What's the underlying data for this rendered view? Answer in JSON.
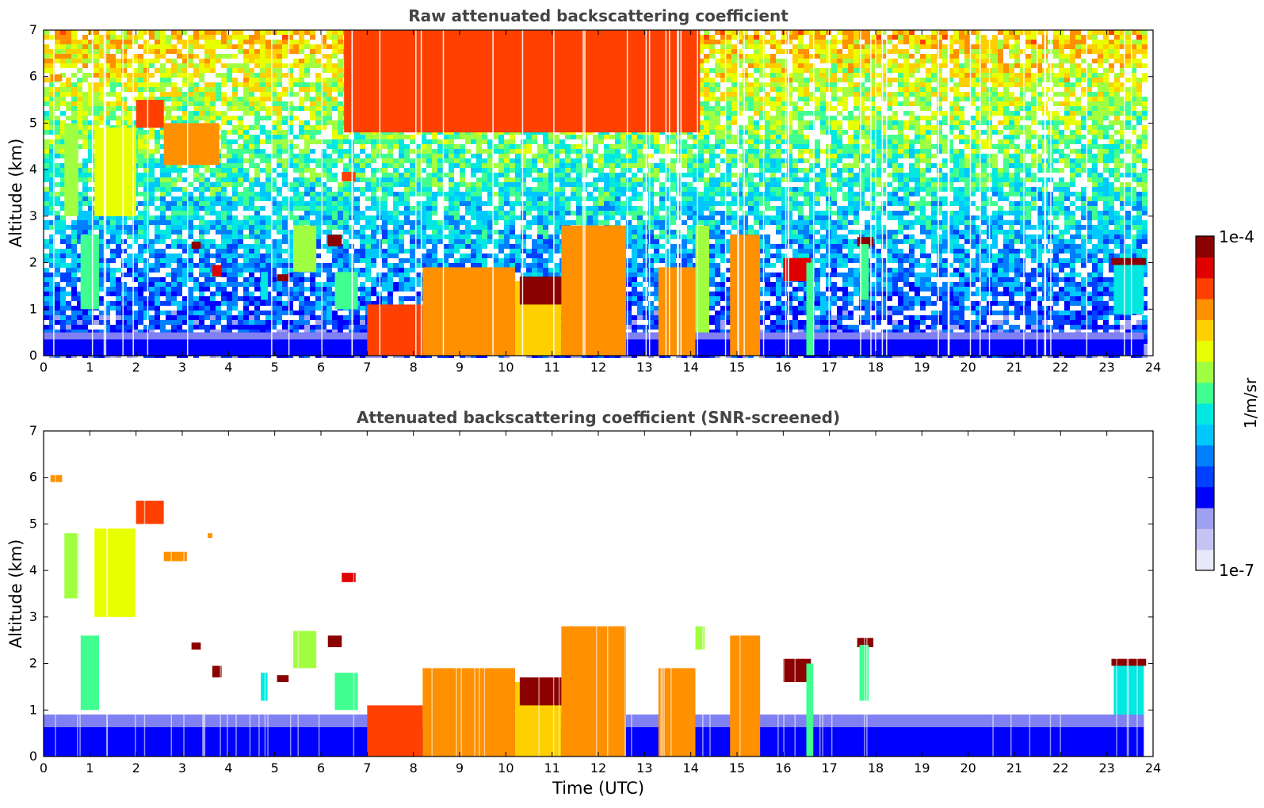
{
  "chart_data": [
    {
      "type": "heatmap",
      "title": "Raw attenuated backscattering coefficient",
      "xlabel": "",
      "ylabel": "Altitude (km)",
      "xlim": [
        0,
        24
      ],
      "ylim": [
        0,
        7
      ],
      "x_ticks": [
        "0",
        "1",
        "2",
        "3",
        "4",
        "5",
        "6",
        "7",
        "8",
        "9",
        "10",
        "11",
        "12",
        "13",
        "14",
        "15",
        "16",
        "17",
        "18",
        "19",
        "20",
        "21",
        "22",
        "23",
        "24"
      ],
      "y_ticks": [
        "0",
        "1",
        "2",
        "3",
        "4",
        "5",
        "6",
        "7"
      ],
      "grid": false,
      "scale": "log",
      "noise_level": 0.8,
      "ground_layer": {
        "top_km": 0.5,
        "end_time": 23.8
      },
      "features": [
        {
          "t0": 0.45,
          "t1": 0.75,
          "z0": 3.0,
          "z1": 5.0,
          "level": 0.62
        },
        {
          "t0": 1.1,
          "t1": 2.0,
          "z0": 3.0,
          "z1": 4.9,
          "level": 0.68
        },
        {
          "t0": 2.0,
          "t1": 2.6,
          "z0": 4.9,
          "z1": 5.5,
          "level": 0.82
        },
        {
          "t0": 0.15,
          "t1": 0.4,
          "z0": 5.9,
          "z1": 6.05,
          "level": 0.78
        },
        {
          "t0": 2.6,
          "t1": 3.8,
          "z0": 4.1,
          "z1": 5.0,
          "level": 0.76
        },
        {
          "t0": 0.8,
          "t1": 1.2,
          "z0": 1.0,
          "z1": 2.6,
          "level": 0.55
        },
        {
          "t0": 3.2,
          "t1": 3.4,
          "z0": 2.3,
          "z1": 2.45,
          "level": 0.95
        },
        {
          "t0": 3.65,
          "t1": 3.85,
          "z0": 1.7,
          "z1": 1.95,
          "level": 0.9
        },
        {
          "t0": 4.7,
          "t1": 4.85,
          "z0": 1.2,
          "z1": 1.8,
          "level": 0.48
        },
        {
          "t0": 5.05,
          "t1": 5.3,
          "z0": 1.6,
          "z1": 1.75,
          "level": 0.95
        },
        {
          "t0": 5.4,
          "t1": 5.9,
          "z0": 1.8,
          "z1": 2.8,
          "level": 0.58
        },
        {
          "t0": 6.15,
          "t1": 6.45,
          "z0": 2.35,
          "z1": 2.6,
          "level": 0.96
        },
        {
          "t0": 6.45,
          "t1": 6.75,
          "z0": 3.75,
          "z1": 3.95,
          "level": 0.86
        },
        {
          "t0": 6.3,
          "t1": 6.8,
          "z0": 1.0,
          "z1": 1.8,
          "level": 0.52
        },
        {
          "t0": 7.0,
          "t1": 8.2,
          "z0": 0.0,
          "z1": 1.1,
          "level": 0.82
        },
        {
          "t0": 8.2,
          "t1": 10.2,
          "z0": 0.0,
          "z1": 1.9,
          "level": 0.8
        },
        {
          "t0": 10.2,
          "t1": 11.2,
          "z0": 0.0,
          "z1": 1.6,
          "level": 0.7
        },
        {
          "t0": 10.3,
          "t1": 12.6,
          "z0": 1.1,
          "z1": 1.7,
          "level": 0.95
        },
        {
          "t0": 11.2,
          "t1": 12.6,
          "z0": 0.0,
          "z1": 2.8,
          "level": 0.78
        },
        {
          "t0": 13.3,
          "t1": 14.1,
          "z0": 0.0,
          "z1": 1.9,
          "level": 0.8
        },
        {
          "t0": 14.1,
          "t1": 14.4,
          "z0": 0.5,
          "z1": 2.8,
          "level": 0.6
        },
        {
          "t0": 14.85,
          "t1": 15.5,
          "z0": 0.0,
          "z1": 2.6,
          "level": 0.78
        },
        {
          "t0": 16.0,
          "t1": 16.6,
          "z0": 1.6,
          "z1": 2.1,
          "level": 0.9
        },
        {
          "t0": 16.5,
          "t1": 16.65,
          "z0": 0.0,
          "z1": 2.0,
          "level": 0.5
        },
        {
          "t0": 17.6,
          "t1": 17.95,
          "z0": 2.35,
          "z1": 2.55,
          "level": 0.97
        },
        {
          "t0": 17.65,
          "t1": 17.85,
          "z0": 1.2,
          "z1": 2.4,
          "level": 0.55
        },
        {
          "t0": 23.1,
          "t1": 23.85,
          "z0": 1.95,
          "z1": 2.1,
          "level": 0.97
        },
        {
          "t0": 23.15,
          "t1": 23.8,
          "z0": 0.9,
          "z1": 1.95,
          "level": 0.45
        },
        {
          "t0": 6.5,
          "t1": 14.2,
          "z0": 4.8,
          "z1": 7.0,
          "level": 0.82
        }
      ]
    },
    {
      "type": "heatmap",
      "title": "Attenuated backscattering coefficient (SNR-screened)",
      "xlabel": "Time (UTC)",
      "ylabel": "Altitude (km)",
      "xlim": [
        0,
        24
      ],
      "ylim": [
        0,
        7
      ],
      "x_ticks": [
        "0",
        "1",
        "2",
        "3",
        "4",
        "5",
        "6",
        "7",
        "8",
        "9",
        "10",
        "11",
        "12",
        "13",
        "14",
        "15",
        "16",
        "17",
        "18",
        "19",
        "20",
        "21",
        "22",
        "23",
        "24"
      ],
      "y_ticks": [
        "0",
        "1",
        "2",
        "3",
        "4",
        "5",
        "6",
        "7"
      ],
      "grid": false,
      "scale": "log",
      "noise_level": 0.0,
      "ground_layer": {
        "top_km": 0.9,
        "end_time": 23.8
      },
      "features": [
        {
          "t0": 0.45,
          "t1": 0.75,
          "z0": 3.4,
          "z1": 4.8,
          "level": 0.62
        },
        {
          "t0": 1.1,
          "t1": 2.0,
          "z0": 3.0,
          "z1": 4.9,
          "level": 0.68
        },
        {
          "t0": 2.0,
          "t1": 2.6,
          "z0": 5.0,
          "z1": 5.5,
          "level": 0.82
        },
        {
          "t0": 0.15,
          "t1": 0.4,
          "z0": 5.9,
          "z1": 6.05,
          "level": 0.78
        },
        {
          "t0": 2.6,
          "t1": 3.1,
          "z0": 4.2,
          "z1": 4.4,
          "level": 0.8
        },
        {
          "t0": 3.55,
          "t1": 3.65,
          "z0": 4.7,
          "z1": 4.8,
          "level": 0.78
        },
        {
          "t0": 0.8,
          "t1": 1.2,
          "z0": 1.0,
          "z1": 2.6,
          "level": 0.55
        },
        {
          "t0": 3.2,
          "t1": 3.4,
          "z0": 2.3,
          "z1": 2.45,
          "level": 0.98
        },
        {
          "t0": 3.65,
          "t1": 3.85,
          "z0": 1.7,
          "z1": 1.95,
          "level": 0.98
        },
        {
          "t0": 4.7,
          "t1": 4.85,
          "z0": 1.2,
          "z1": 1.8,
          "level": 0.48
        },
        {
          "t0": 5.05,
          "t1": 5.3,
          "z0": 1.6,
          "z1": 1.75,
          "level": 0.98
        },
        {
          "t0": 5.4,
          "t1": 5.9,
          "z0": 1.9,
          "z1": 2.7,
          "level": 0.58
        },
        {
          "t0": 6.15,
          "t1": 6.45,
          "z0": 2.35,
          "z1": 2.6,
          "level": 0.99
        },
        {
          "t0": 6.45,
          "t1": 6.75,
          "z0": 3.75,
          "z1": 3.95,
          "level": 0.88
        },
        {
          "t0": 6.3,
          "t1": 6.8,
          "z0": 1.0,
          "z1": 1.8,
          "level": 0.52
        },
        {
          "t0": 7.0,
          "t1": 8.2,
          "z0": 0.0,
          "z1": 1.1,
          "level": 0.82
        },
        {
          "t0": 8.2,
          "t1": 10.2,
          "z0": 0.0,
          "z1": 1.9,
          "level": 0.8
        },
        {
          "t0": 10.2,
          "t1": 11.2,
          "z0": 0.0,
          "z1": 1.6,
          "level": 0.7
        },
        {
          "t0": 10.3,
          "t1": 12.6,
          "z0": 1.1,
          "z1": 1.7,
          "level": 0.99
        },
        {
          "t0": 11.2,
          "t1": 12.6,
          "z0": 0.0,
          "z1": 2.8,
          "level": 0.78
        },
        {
          "t0": 13.3,
          "t1": 14.1,
          "z0": 0.0,
          "z1": 1.9,
          "level": 0.8
        },
        {
          "t0": 14.1,
          "t1": 14.3,
          "z0": 2.3,
          "z1": 2.8,
          "level": 0.6
        },
        {
          "t0": 14.85,
          "t1": 15.5,
          "z0": 0.0,
          "z1": 2.6,
          "level": 0.78
        },
        {
          "t0": 16.0,
          "t1": 16.6,
          "z0": 1.6,
          "z1": 2.1,
          "level": 0.95
        },
        {
          "t0": 16.5,
          "t1": 16.65,
          "z0": 0.0,
          "z1": 2.0,
          "level": 0.5
        },
        {
          "t0": 17.6,
          "t1": 17.95,
          "z0": 2.35,
          "z1": 2.55,
          "level": 0.99
        },
        {
          "t0": 17.65,
          "t1": 17.85,
          "z0": 1.2,
          "z1": 2.4,
          "level": 0.55
        },
        {
          "t0": 23.1,
          "t1": 23.85,
          "z0": 1.95,
          "z1": 2.1,
          "level": 0.99
        },
        {
          "t0": 23.15,
          "t1": 23.8,
          "z0": 0.9,
          "z1": 1.95,
          "level": 0.45
        }
      ]
    }
  ],
  "colorbar": {
    "max_label": "1e-4",
    "min_label": "1e-7",
    "label": "1/m/sr",
    "vmin": 1e-07,
    "vmax": 0.0001,
    "scale": "log",
    "colors": [
      "#e8e8f8",
      "#c4c4f4",
      "#a0a0f0",
      "#0000ff",
      "#0040ff",
      "#0080ff",
      "#00c8ff",
      "#00e8e0",
      "#40ff90",
      "#a0ff40",
      "#e8ff00",
      "#ffd000",
      "#ff9000",
      "#ff4000",
      "#e00000",
      "#8b0000"
    ]
  }
}
